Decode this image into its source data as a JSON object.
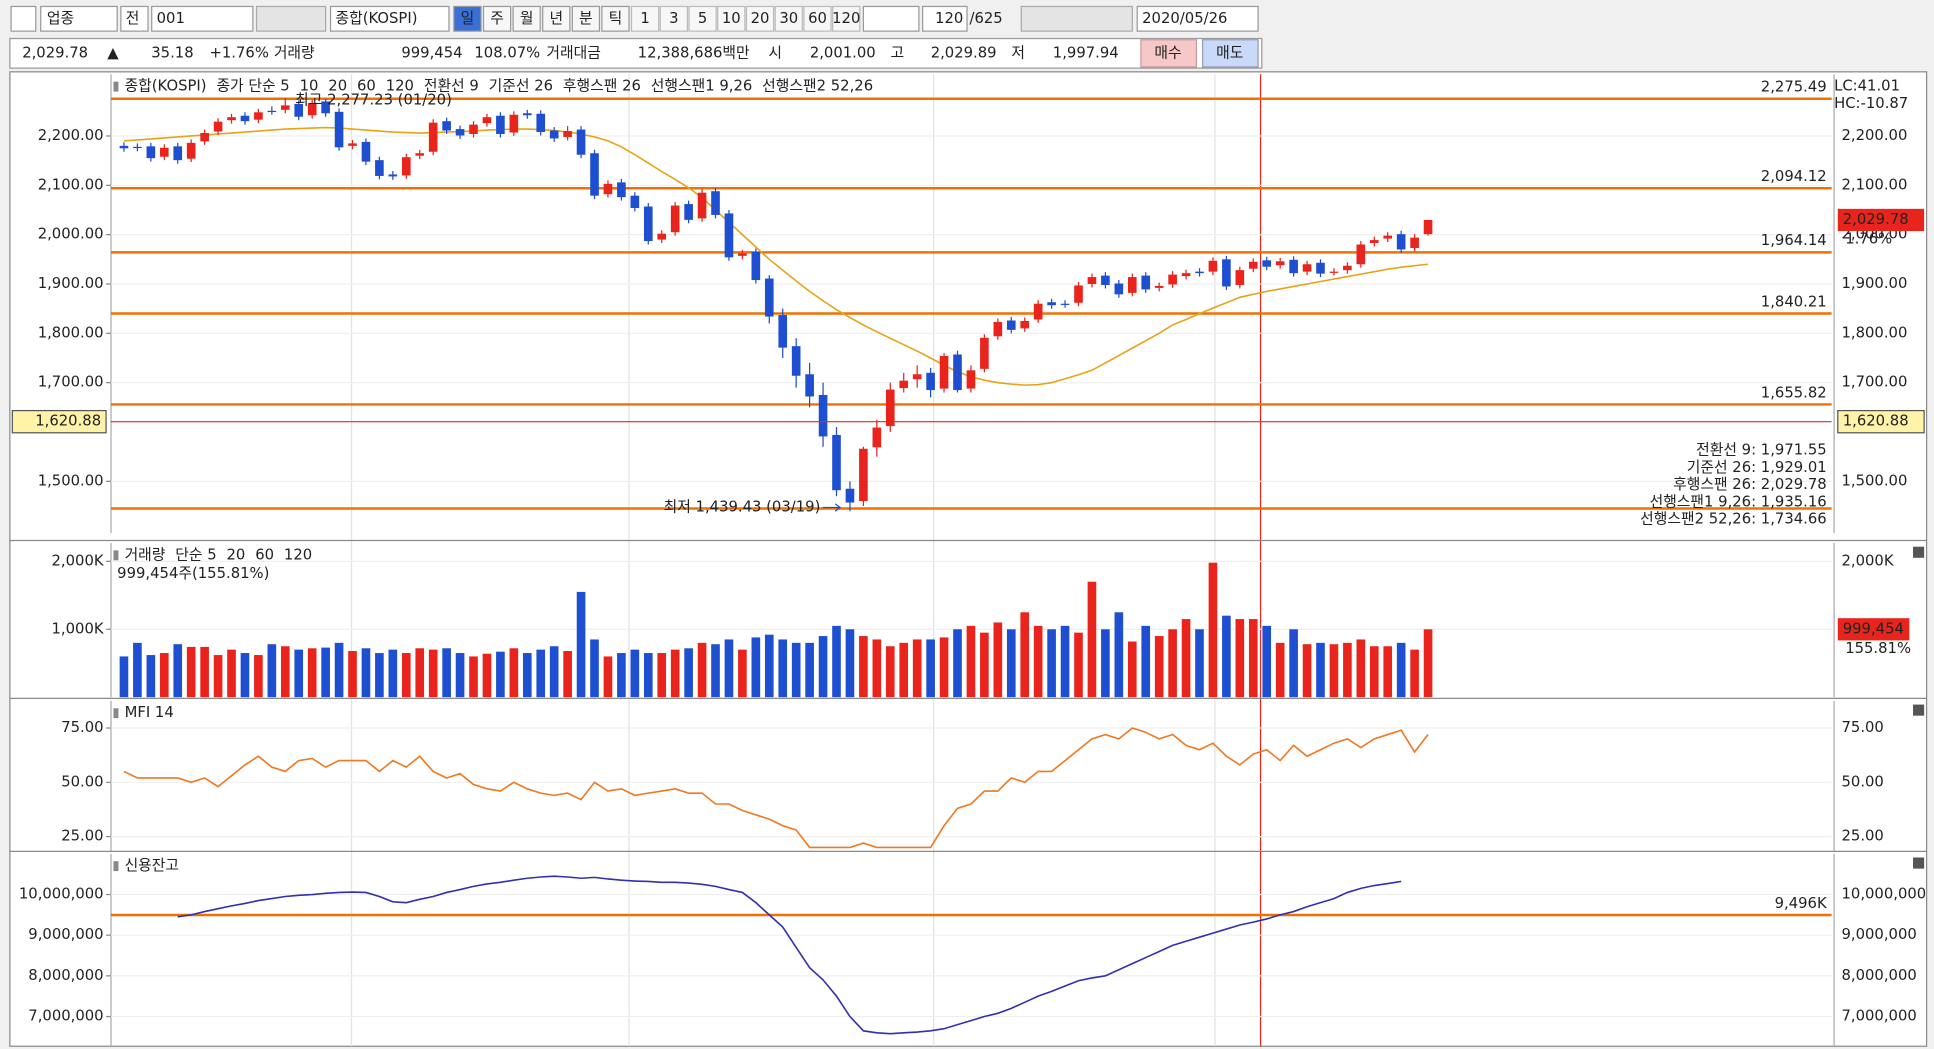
{
  "toolbar": {
    "market": "업종",
    "prefix": "전",
    "code": "001",
    "name": "종합(KOSPI)",
    "periods": [
      "일",
      "주",
      "월",
      "년",
      "분",
      "틱"
    ],
    "intervals": [
      "1",
      "3",
      "5",
      "10",
      "20",
      "30",
      "60",
      "120"
    ],
    "count": "120",
    "total": "/625",
    "date": "2020/05/26"
  },
  "quote": {
    "price": "2,029.78",
    "arrow": "▲",
    "change": "35.18",
    "change_pct": "+1.76%",
    "volume_label": "거래량",
    "volume": "999,454",
    "volume_pct": "108.07%",
    "amount_label": "거래대금",
    "amount": "12,388,686백만",
    "open_label": "시",
    "open": "2,001.00",
    "high_label": "고",
    "high": "2,029.89",
    "low_label": "저",
    "low": "1,997.94",
    "buy": "매수",
    "sell": "매도"
  },
  "chart_data": [
    {
      "type": "candlestick",
      "legend": [
        {
          "text": "종합(KOSPI)",
          "color": "#333333"
        },
        {
          "text": "종가 단순 5",
          "color": "#e0209a"
        },
        {
          "text": "10",
          "color": "#1f3fc0"
        },
        {
          "text": "20",
          "color": "#e8a317"
        },
        {
          "text": "60",
          "color": "#1a9e3a"
        },
        {
          "text": "120",
          "color": "#777777"
        },
        {
          "text": "전환선 9",
          "color": "#1a9e8a"
        },
        {
          "text": "기준선 26",
          "color": "#666666"
        },
        {
          "text": "후행스팬 26",
          "color": "#a030c0"
        },
        {
          "text": "선행스팬1 9,26",
          "color": "#f08040"
        },
        {
          "text": "선행스팬2 52,26",
          "color": "#4060e0"
        }
      ],
      "open": [
        2180,
        2178,
        2179,
        2158,
        2179,
        2154,
        2189,
        2209,
        2232,
        2241,
        2233,
        2251,
        2253,
        2265,
        2242,
        2270,
        2249,
        2180,
        2188,
        2151,
        2122,
        2120,
        2160,
        2168,
        2230,
        2214,
        2204,
        2226,
        2241,
        2207,
        2246,
        2245,
        2211,
        2198,
        2213,
        2165,
        2082,
        2106,
        2079,
        2057,
        1990,
        2005,
        2062,
        2033,
        2088,
        2043,
        1957,
        1965,
        1911,
        1837,
        1774,
        1717,
        1675,
        1594,
        1485,
        1460,
        1569,
        1612,
        1689,
        1707,
        1720,
        1688,
        1757,
        1688,
        1728,
        1794,
        1826,
        1810,
        1828,
        1863,
        1860,
        1862,
        1900,
        1917,
        1901,
        1882,
        1917,
        1892,
        1899,
        1916,
        1925,
        1925,
        1950,
        1898,
        1931,
        1948,
        1938,
        1949,
        1925,
        1943,
        1924,
        1928,
        1940,
        1983,
        1992,
        2001,
        1973,
        2001
      ],
      "high": [
        2187,
        2185,
        2186,
        2183,
        2186,
        2193,
        2213,
        2236,
        2245,
        2248,
        2255,
        2260,
        2277.23,
        2272,
        2274,
        2275,
        2256,
        2192,
        2195,
        2158,
        2129,
        2164,
        2172,
        2234,
        2237,
        2221,
        2230,
        2245,
        2248,
        2250,
        2253,
        2252,
        2218,
        2220,
        2220,
        2172,
        2110,
        2113,
        2086,
        2064,
        2009,
        2066,
        2069,
        2092,
        2095,
        2050,
        1969,
        1972,
        1918,
        1850,
        1790,
        1740,
        1700,
        1610,
        1500,
        1570,
        1625,
        1700,
        1720,
        1735,
        1730,
        1760,
        1765,
        1735,
        1798,
        1830,
        1833,
        1832,
        1867,
        1870,
        1867,
        1904,
        1921,
        1924,
        1908,
        1921,
        1924,
        1903,
        1926,
        1929,
        1932,
        1954,
        1957,
        1935,
        1952,
        1955,
        1953,
        1956,
        1947,
        1950,
        1932,
        1944,
        1987,
        1996,
        2005,
        2008,
        2001,
        2029.89
      ],
      "low": [
        2168,
        2169,
        2148,
        2151,
        2144,
        2147,
        2182,
        2202,
        2225,
        2223,
        2226,
        2243,
        2246,
        2232,
        2235,
        2239,
        2170,
        2173,
        2141,
        2112,
        2111,
        2113,
        2153,
        2161,
        2204,
        2194,
        2197,
        2219,
        2197,
        2200,
        2235,
        2201,
        2188,
        2191,
        2155,
        2072,
        2075,
        2069,
        2047,
        1980,
        1983,
        1998,
        2023,
        2026,
        2033,
        1947,
        1950,
        1901,
        1820,
        1750,
        1690,
        1650,
        1570,
        1470,
        1439.43,
        1450,
        1550,
        1600,
        1680,
        1690,
        1670,
        1680,
        1680,
        1680,
        1721,
        1787,
        1800,
        1803,
        1821,
        1850,
        1852,
        1855,
        1893,
        1891,
        1872,
        1875,
        1882,
        1885,
        1892,
        1909,
        1915,
        1918,
        1888,
        1891,
        1924,
        1928,
        1931,
        1915,
        1918,
        1914,
        1917,
        1921,
        1933,
        1976,
        1985,
        1963,
        1966,
        1997.94
      ],
      "close": [
        2175,
        2176,
        2155,
        2176,
        2151,
        2186,
        2206,
        2229,
        2238,
        2230,
        2248,
        2250,
        2262,
        2239,
        2267,
        2246,
        2177,
        2185,
        2148,
        2119,
        2118,
        2157,
        2165,
        2227,
        2211,
        2201,
        2223,
        2238,
        2204,
        2243,
        2242,
        2208,
        2195,
        2210,
        2162,
        2079,
        2103,
        2076,
        2054,
        1987,
        2002,
        2059,
        2030,
        2085,
        2040,
        1954,
        1962,
        1908,
        1834,
        1771,
        1714,
        1672,
        1591,
        1482,
        1457,
        1566,
        1609,
        1686,
        1704,
        1717,
        1685,
        1754,
        1685,
        1725,
        1791,
        1823,
        1807,
        1825,
        1860,
        1857,
        1859,
        1897,
        1914,
        1898,
        1879,
        1914,
        1889,
        1896,
        1919,
        1922,
        1922,
        1947,
        1895,
        1928,
        1945,
        1935,
        1946,
        1922,
        1940,
        1921,
        1925,
        1937,
        1980,
        1989,
        1998,
        1970,
        1994,
        2029.78
      ],
      "up_color": "#e8241c",
      "down_color": "#1f4fd1",
      "series": [
        {
          "color": "#e8a317",
          "values": [
            2190,
            2192,
            2194,
            2196,
            2198,
            2200,
            2202,
            2204,
            2206,
            2208,
            2210,
            2212,
            2214,
            2215,
            2216,
            2217,
            2216,
            2214,
            2212,
            2210,
            2208,
            2207,
            2206,
            2207,
            2208,
            2209,
            2210,
            2212,
            2213,
            2214,
            2214,
            2213,
            2211,
            2208,
            2204,
            2198,
            2190,
            2178,
            2162,
            2145,
            2128,
            2112,
            2095,
            2075,
            2050,
            2025,
            2000,
            1975,
            1950,
            1928,
            1906,
            1885,
            1866,
            1848,
            1832,
            1817,
            1803,
            1790,
            1777,
            1764,
            1750,
            1735,
            1722,
            1712,
            1705,
            1700,
            1697,
            1695,
            1696,
            1700,
            1708,
            1716,
            1725,
            1740,
            1755,
            1770,
            1785,
            1800,
            1817,
            1828,
            1840,
            1851,
            1862,
            1873,
            1879,
            1885,
            1890,
            1895,
            1900,
            1905,
            1910,
            1915,
            1920,
            1925,
            1930,
            1934,
            1937,
            1940
          ]
        }
      ],
      "ylim": [
        1395,
        2325
      ],
      "yticks": [
        {
          "value": 2200,
          "label": "2,200.00"
        },
        {
          "value": 2100,
          "label": "2,100.00"
        },
        {
          "value": 2000,
          "label": "2,000.00"
        },
        {
          "value": 1900,
          "label": "1,900.00"
        },
        {
          "value": 1800,
          "label": "1,800.00"
        },
        {
          "value": 1700,
          "label": "1,700.00"
        },
        {
          "value": 1500,
          "label": "1,500.00"
        }
      ],
      "levels": [
        {
          "value": 2275.49,
          "label": "2,275.49"
        },
        {
          "value": 2094.12,
          "label": "2,094.12"
        },
        {
          "value": 1964.14,
          "label": "1,964.14"
        },
        {
          "value": 1840.21,
          "label": "1,840.21"
        },
        {
          "value": 1655.82,
          "label": "1,655.82"
        },
        {
          "value": 1445
        }
      ],
      "level_color": "#f07000",
      "price_line": {
        "value": 1620.88,
        "label": "1,620.88"
      },
      "last_price": {
        "value": 2029.78,
        "label": "2,029.78"
      },
      "change_label": "1.76%",
      "corner_labels": [
        {
          "text": "LC:41.01",
          "color": "#e8241c"
        },
        {
          "text": "HC:-10.87",
          "color": "#1f4fd1"
        }
      ],
      "high_note": "최고 2,277.23 (01/20)",
      "low_note": "최저 1,439.43 (03/19)",
      "indicator_values": [
        {
          "text": "전환선 9: 1,971.55",
          "color": "#1a9e8a"
        },
        {
          "text": "기준선 26: 1,929.01",
          "color": "#666666"
        },
        {
          "text": "후행스팬 26: 2,029.78",
          "color": "#a030c0"
        },
        {
          "text": "선행스팬1 9,26: 1,935.16",
          "color": "#f08040"
        },
        {
          "text": "선행스팬2 52,26: 1,734.66",
          "color": "#4060e0"
        }
      ]
    },
    {
      "type": "bar",
      "legend": [
        {
          "text": "거래량",
          "color": "#1a9e8a"
        },
        {
          "text": "단순 5",
          "color": "#e0209a"
        },
        {
          "text": "20",
          "color": "#e8a317"
        },
        {
          "text": "60",
          "color": "#1a9e3a"
        },
        {
          "text": "120",
          "color": "#777777"
        }
      ],
      "summary": "999,454주(155.81%)",
      "values": [
        600,
        800,
        620,
        650,
        780,
        740,
        740,
        620,
        700,
        650,
        620,
        780,
        750,
        700,
        720,
        730,
        800,
        680,
        720,
        650,
        700,
        650,
        720,
        700,
        720,
        650,
        600,
        640,
        670,
        720,
        650,
        700,
        750,
        680,
        1550,
        850,
        600,
        650,
        700,
        650,
        650,
        700,
        720,
        800,
        780,
        850,
        700,
        880,
        920,
        850,
        800,
        800,
        900,
        1050,
        1000,
        900,
        850,
        750,
        800,
        850,
        850,
        880,
        1000,
        1050,
        950,
        1100,
        1000,
        1250,
        1050,
        1000,
        1050,
        950,
        1700,
        1000,
        1250,
        820,
        1050,
        900,
        1000,
        1150,
        1000,
        1980,
        1200,
        1150,
        1150,
        1050,
        800,
        1000,
        780,
        800,
        780,
        800,
        850,
        750,
        750,
        800,
        700,
        999.454
      ],
      "ylim": [
        0,
        2270
      ],
      "yticks": [
        {
          "value": 2000,
          "label": "2,000K"
        },
        {
          "value": 1000,
          "label": "1,000K"
        }
      ],
      "last_label": "999,454",
      "ratio_label": "155.81%"
    },
    {
      "type": "line",
      "legend": [
        {
          "text": "MFI 14",
          "color": "#f07820"
        }
      ],
      "color": "#f07820",
      "values": [
        55,
        52,
        52,
        52,
        52,
        50,
        52,
        48,
        53,
        58,
        62,
        57,
        55,
        60,
        61,
        57,
        60,
        60,
        60,
        55,
        60,
        57,
        62,
        55,
        52,
        54,
        49,
        47,
        46,
        50,
        47,
        45,
        44,
        45,
        42,
        50,
        46,
        47,
        44,
        45,
        46,
        47,
        45,
        45,
        40,
        40,
        37,
        35,
        33,
        30,
        28,
        20,
        20,
        20,
        20,
        22,
        20,
        20,
        20,
        20,
        20,
        30,
        38,
        40,
        46,
        46,
        52,
        50,
        55,
        55,
        60,
        65,
        70,
        72,
        70,
        75,
        73,
        70,
        72,
        67,
        65,
        68,
        62,
        58,
        63,
        65,
        60,
        67,
        62,
        65,
        68,
        70,
        66,
        70,
        72,
        74,
        64,
        72
      ],
      "ylim": [
        18.2,
        87.5
      ],
      "yticks": [
        {
          "value": 75,
          "label": "75.00"
        },
        {
          "value": 50,
          "label": "50.00"
        },
        {
          "value": 25,
          "label": "25.00"
        }
      ]
    },
    {
      "type": "line",
      "legend": [
        {
          "text": "신용잔고",
          "color": "#3030b0"
        }
      ],
      "color": "#3030b0",
      "values": [
        null,
        null,
        null,
        null,
        9450000,
        9500000,
        9580000,
        9650000,
        9720000,
        9780000,
        9850000,
        9900000,
        9950000,
        9980000,
        10000000,
        10030000,
        10050000,
        10060000,
        10050000,
        9950000,
        9820000,
        9800000,
        9880000,
        9950000,
        10050000,
        10120000,
        10200000,
        10260000,
        10300000,
        10350000,
        10400000,
        10430000,
        10450000,
        10430000,
        10400000,
        10420000,
        10380000,
        10350000,
        10330000,
        10320000,
        10300000,
        10300000,
        10280000,
        10250000,
        10200000,
        10120000,
        10050000,
        9800000,
        9500000,
        9200000,
        8700000,
        8200000,
        7900000,
        7500000,
        7000000,
        6650000,
        6600000,
        6580000,
        6600000,
        6620000,
        6650000,
        6700000,
        6800000,
        6900000,
        7000000,
        7080000,
        7200000,
        7350000,
        7500000,
        7620000,
        7750000,
        7880000,
        7950000,
        8000000,
        8150000,
        8300000,
        8450000,
        8600000,
        8750000,
        8850000,
        8950000,
        9050000,
        9150000,
        9250000,
        9320000,
        9400000,
        9500000,
        9580000,
        9700000,
        9800000,
        9900000,
        10050000,
        10150000,
        10220000,
        10270000,
        10320000,
        null,
        null
      ],
      "ylim": [
        6270000,
        11000000
      ],
      "yticks": [
        {
          "value": 10000000,
          "label": "10,000,000"
        },
        {
          "value": 9000000,
          "label": "9,000,000"
        },
        {
          "value": 8000000,
          "label": "8,000,000"
        },
        {
          "value": 7000000,
          "label": "7,000,000"
        }
      ],
      "levels": [
        {
          "value": 9496000,
          "label": "9,496K"
        }
      ],
      "level_color": "#f07000"
    }
  ]
}
